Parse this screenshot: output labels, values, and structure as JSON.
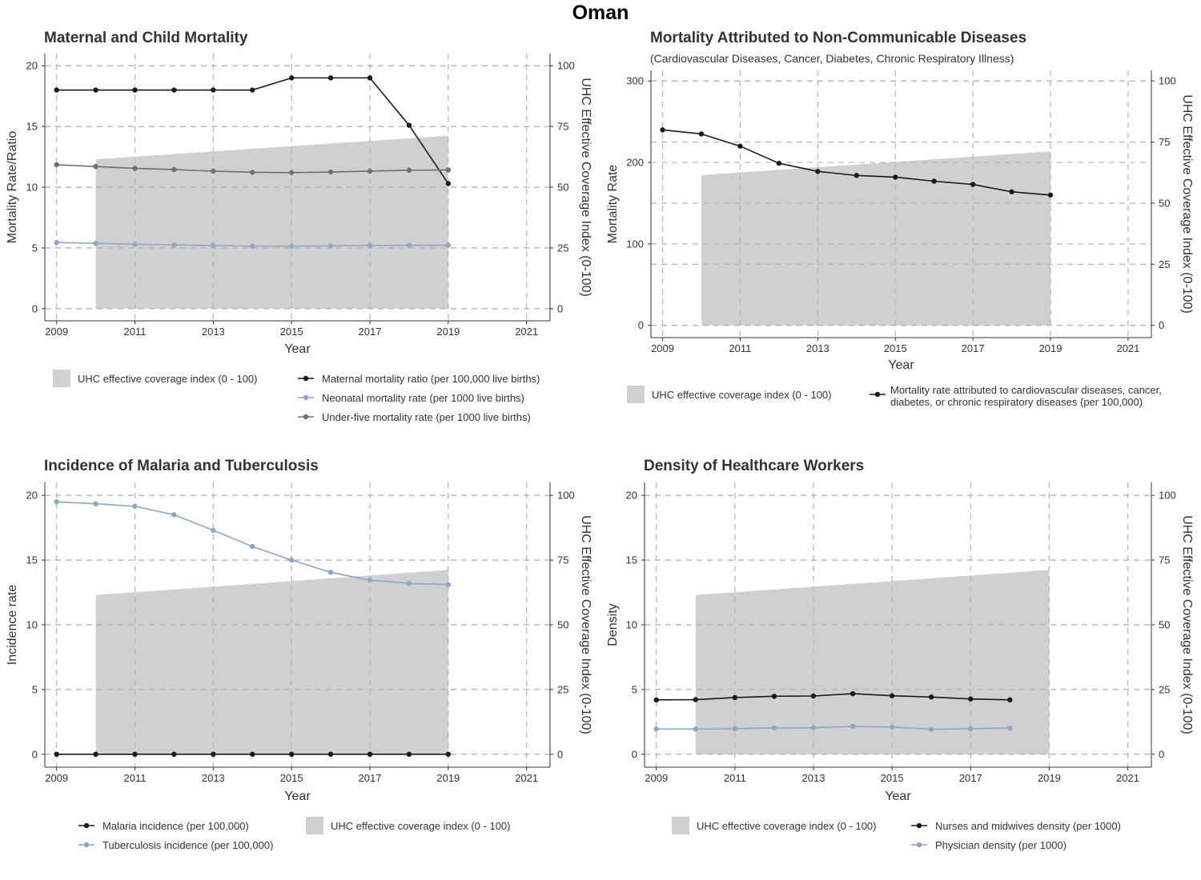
{
  "page_title": "Oman",
  "colors": {
    "black_series": "#1a1a1a",
    "blue_series": "#8ea7c6",
    "gray_series": "#707070",
    "uhc_fill": "#d0d0d0",
    "grid": "#b5b5b5",
    "axis": "#333333"
  },
  "chart_data": [
    {
      "type": "line",
      "title": "Maternal and Child Mortality",
      "subtitle": "",
      "xlabel": "Year",
      "ylabel": "Mortality Rate/Ratio",
      "y2label": "UHC Effective Coverage Index (0-100)",
      "xlim": [
        2008.7,
        2021.6
      ],
      "ylim": [
        -1,
        21
      ],
      "y2lim": [
        0,
        100
      ],
      "x_ticks": [
        "2009",
        "2011",
        "2013",
        "2015",
        "2017",
        "2019",
        "2021"
      ],
      "y_ticks": [
        "0",
        "5",
        "10",
        "15",
        "20"
      ],
      "y2_ticks": [
        "0",
        "25",
        "50",
        "75",
        "100"
      ],
      "grid": true,
      "area": {
        "name": "UHC effective coverage index (0 - 100)",
        "x": [
          2010,
          2019
        ],
        "y": [
          61.5,
          71.2
        ]
      },
      "series": [
        {
          "name": "Maternal mortality ratio (per 100,000 live births)",
          "color": "#1a1a1a",
          "x": [
            2009,
            2010,
            2011,
            2012,
            2013,
            2014,
            2015,
            2016,
            2017,
            2018,
            2019
          ],
          "y": [
            18,
            18,
            18,
            18,
            18,
            18,
            19,
            19,
            19,
            15.1,
            10.3
          ]
        },
        {
          "name": "Neonatal mortality rate (per 1000 live births)",
          "color": "#8ea7c6",
          "x": [
            2009,
            2010,
            2011,
            2012,
            2013,
            2014,
            2015,
            2016,
            2017,
            2018,
            2019
          ],
          "y": [
            5.45,
            5.38,
            5.3,
            5.25,
            5.2,
            5.15,
            5.15,
            5.17,
            5.2,
            5.22,
            5.22
          ]
        },
        {
          "name": "Under-five mortality rate (per 1000 live births)",
          "color": "#707070",
          "x": [
            2009,
            2010,
            2011,
            2012,
            2013,
            2014,
            2015,
            2016,
            2017,
            2018,
            2019
          ],
          "y": [
            11.85,
            11.7,
            11.55,
            11.45,
            11.32,
            11.23,
            11.2,
            11.25,
            11.32,
            11.4,
            11.42
          ]
        }
      ],
      "legend": {
        "position": "bottom",
        "columns": [
          [
            {
              "kind": "area",
              "label": "UHC effective coverage index (0 - 100)"
            }
          ],
          [
            {
              "kind": "line",
              "color": "#1a1a1a",
              "label": "Maternal mortality ratio (per 100,000 live births)"
            },
            {
              "kind": "line",
              "color": "#8ea7c6",
              "label": "Neonatal mortality rate (per 1000 live births)"
            },
            {
              "kind": "line",
              "color": "#707070",
              "label": "Under-five mortality rate (per 1000 live births)"
            }
          ]
        ]
      }
    },
    {
      "type": "line",
      "title": "Mortality Attributed to Non-Communicable Diseases",
      "subtitle": "(Cardiovascular Diseases, Cancer, Diabetes, Chronic Respiratory Illness)",
      "xlabel": "Year",
      "ylabel": "Mortality Rate",
      "y2label": "UHC Effective Coverage Index (0-100)",
      "xlim": [
        2008.7,
        2021.6
      ],
      "ylim": [
        -15,
        313
      ],
      "y2lim": [
        0,
        100
      ],
      "x_ticks": [
        "2009",
        "2011",
        "2013",
        "2015",
        "2017",
        "2019",
        "2021"
      ],
      "y_ticks": [
        "0",
        "100",
        "200",
        "300"
      ],
      "y2_ticks": [
        "0",
        "25",
        "50",
        "75",
        "100"
      ],
      "grid": true,
      "area": {
        "name": "UHC effective coverage index (0 - 100)",
        "x": [
          2010,
          2019
        ],
        "y": [
          61.5,
          71.2
        ]
      },
      "series": [
        {
          "name": "Mortality rate attributed to cardiovascular diseases, cancer, diabetes, or chronic respiratory diseases (per 100,000)",
          "color": "#1a1a1a",
          "x": [
            2009,
            2010,
            2011,
            2012,
            2013,
            2014,
            2015,
            2016,
            2017,
            2018,
            2019
          ],
          "y": [
            240,
            235,
            220,
            199,
            189,
            184,
            182,
            177,
            173,
            164,
            160
          ]
        }
      ],
      "legend": {
        "position": "bottom",
        "columns": [
          [
            {
              "kind": "area",
              "label": "UHC effective coverage index (0 - 100)"
            }
          ],
          [
            {
              "kind": "line",
              "color": "#1a1a1a",
              "label": "Mortality rate attributed to cardiovascular diseases, cancer,",
              "label2": "diabetes, or chronic respiratory diseases (per 100,000)"
            }
          ]
        ]
      }
    },
    {
      "type": "line",
      "title": "Incidence of Malaria and Tuberculosis",
      "subtitle": "",
      "xlabel": "Year",
      "ylabel": "Incidence rate",
      "y2label": "UHC Effective Coverage Index (0-100)",
      "xlim": [
        2008.7,
        2021.6
      ],
      "ylim": [
        -1,
        21
      ],
      "y2lim": [
        0,
        100
      ],
      "x_ticks": [
        "2009",
        "2011",
        "2013",
        "2015",
        "2017",
        "2019",
        "2021"
      ],
      "y_ticks": [
        "0",
        "5",
        "10",
        "15",
        "20"
      ],
      "y2_ticks": [
        "0",
        "25",
        "50",
        "75",
        "100"
      ],
      "grid": true,
      "area": {
        "name": "UHC effective coverage index (0 - 100)",
        "x": [
          2010,
          2019
        ],
        "y": [
          61.5,
          71.2
        ]
      },
      "series": [
        {
          "name": "Malaria incidence (per 100,000)",
          "color": "#1a1a1a",
          "x": [
            2009,
            2010,
            2011,
            2012,
            2013,
            2014,
            2015,
            2016,
            2017,
            2018,
            2019
          ],
          "y": [
            0,
            0,
            0,
            0,
            0,
            0,
            0,
            0,
            0,
            0,
            0
          ]
        },
        {
          "name": "Tuberculosis incidence (per 100,000)",
          "color": "#8ea7c6",
          "x": [
            2009,
            2010,
            2011,
            2012,
            2013,
            2014,
            2015,
            2016,
            2017,
            2018,
            2019
          ],
          "y": [
            19.5,
            19.35,
            19.15,
            18.5,
            17.3,
            16.05,
            15.0,
            14.05,
            13.45,
            13.2,
            13.1
          ]
        }
      ],
      "legend": {
        "position": "bottom",
        "columns": [
          [
            {
              "kind": "line",
              "color": "#1a1a1a",
              "label": "Malaria incidence (per 100,000)"
            },
            {
              "kind": "line",
              "color": "#8ea7c6",
              "label": "Tuberculosis incidence (per 100,000)"
            }
          ],
          [
            {
              "kind": "area",
              "label": "UHC effective coverage index (0 - 100)"
            }
          ]
        ]
      }
    },
    {
      "type": "line",
      "title": "Density of Healthcare Workers",
      "subtitle": "",
      "xlabel": "Year",
      "ylabel": "Density",
      "y2label": "UHC Effective Coverage Index (0-100)",
      "xlim": [
        2008.7,
        2021.6
      ],
      "ylim": [
        -1,
        21
      ],
      "y2lim": [
        0,
        100
      ],
      "x_ticks": [
        "2009",
        "2011",
        "2013",
        "2015",
        "2017",
        "2019",
        "2021"
      ],
      "y_ticks": [
        "0",
        "5",
        "10",
        "15",
        "20"
      ],
      "y2_ticks": [
        "0",
        "25",
        "50",
        "75",
        "100"
      ],
      "grid": true,
      "area": {
        "name": "UHC effective coverage index (0 - 100)",
        "x": [
          2010,
          2019
        ],
        "y": [
          61.5,
          71.2
        ]
      },
      "series": [
        {
          "name": "Nurses and midwives density (per 1000)",
          "color": "#1a1a1a",
          "x": [
            2009,
            2010,
            2011,
            2012,
            2013,
            2014,
            2015,
            2016,
            2017,
            2018
          ],
          "y": [
            4.2,
            4.22,
            4.38,
            4.48,
            4.5,
            4.68,
            4.52,
            4.42,
            4.27,
            4.2
          ]
        },
        {
          "name": "Physician density (per 1000)",
          "color": "#8ea7c6",
          "x": [
            2009,
            2010,
            2011,
            2012,
            2013,
            2014,
            2015,
            2016,
            2017,
            2018
          ],
          "y": [
            1.95,
            1.95,
            1.97,
            2.03,
            2.05,
            2.15,
            2.1,
            1.93,
            1.97,
            2.02
          ]
        }
      ],
      "legend": {
        "position": "bottom",
        "columns": [
          [
            {
              "kind": "area",
              "label": "UHC effective coverage index (0 - 100)"
            }
          ],
          [
            {
              "kind": "line",
              "color": "#1a1a1a",
              "label": "Nurses and midwives density (per 1000)"
            },
            {
              "kind": "line",
              "color": "#8ea7c6",
              "label": "Physician density (per 1000)"
            }
          ]
        ]
      }
    }
  ]
}
